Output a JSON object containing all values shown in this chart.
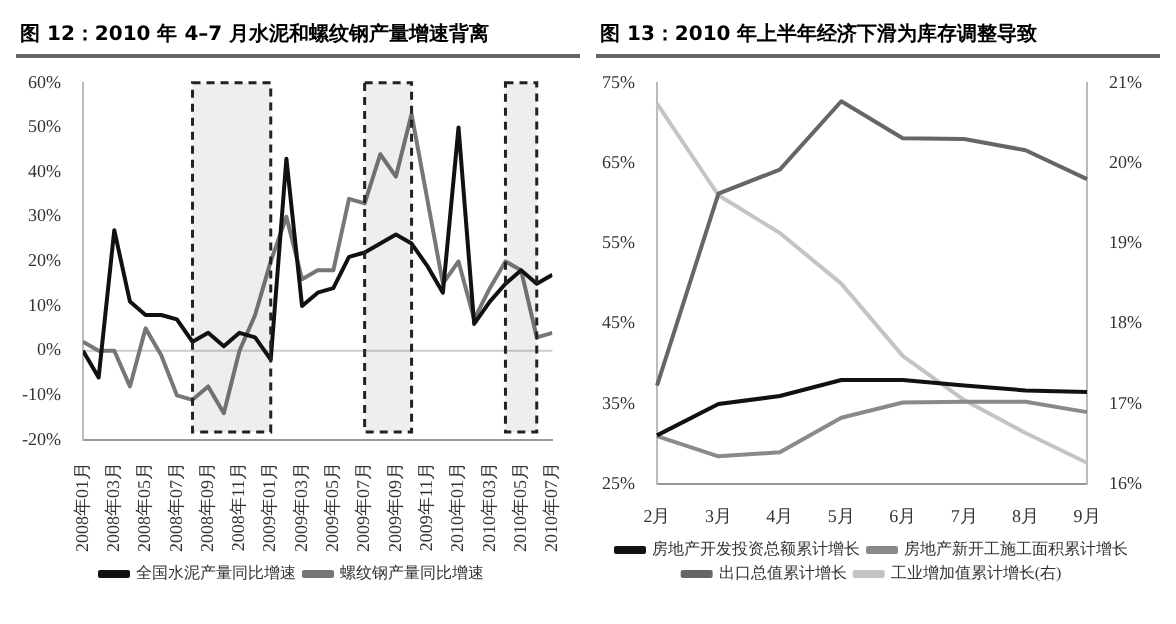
{
  "chart_data": [
    {
      "type": "line",
      "title": "图 12：2010 年 4–7 月水泥和螺纹钢产量增速背离",
      "marker": "none",
      "legend": "bottom",
      "x": [
        "2008-01",
        "2008-02",
        "2008-03",
        "2008-04",
        "2008-05",
        "2008-06",
        "2008-07",
        "2008-08",
        "2008-09",
        "2008-10",
        "2008-11",
        "2008-12",
        "2009-01",
        "2009-02",
        "2009-03",
        "2009-04",
        "2009-05",
        "2009-06",
        "2009-07",
        "2009-08",
        "2009-09",
        "2009-10",
        "2009-11",
        "2009-12",
        "2010-01",
        "2010-02",
        "2010-03",
        "2010-04",
        "2010-05",
        "2010-06",
        "2010-07"
      ],
      "series": [
        {
          "name": "全国水泥产量同比增速",
          "color": "#111111",
          "values": [
            0,
            -6,
            27,
            11,
            8,
            8,
            7,
            2,
            4,
            1,
            4,
            3,
            -2,
            43,
            10,
            13,
            14,
            21,
            22,
            24,
            26,
            24,
            19,
            13,
            50,
            6,
            11,
            15,
            18,
            15,
            17
          ]
        },
        {
          "name": "螺纹钢产量同比增速",
          "color": "#777777",
          "values": [
            2,
            0,
            0,
            -8,
            5,
            -1,
            -10,
            -11,
            -8,
            -14,
            0,
            8,
            20,
            30,
            16,
            18,
            18,
            34,
            33,
            44,
            39,
            53,
            34,
            15,
            20,
            7,
            14,
            20,
            18,
            3,
            4
          ]
        }
      ],
      "xlim": [
        "2008-01",
        "2010-07"
      ],
      "xticks": [
        {
          "value": "2008-01",
          "label": "2008年01月"
        },
        {
          "value": "2008-03",
          "label": "2008年03月"
        },
        {
          "value": "2008-05",
          "label": "2008年05月"
        },
        {
          "value": "2008-07",
          "label": "2008年07月"
        },
        {
          "value": "2008-09",
          "label": "2008年09月"
        },
        {
          "value": "2008-11",
          "label": "2008年11月"
        },
        {
          "value": "2009-01",
          "label": "2009年01月"
        },
        {
          "value": "2009-03",
          "label": "2009年03月"
        },
        {
          "value": "2009-05",
          "label": "2009年05月"
        },
        {
          "value": "2009-07",
          "label": "2009年07月"
        },
        {
          "value": "2009-09",
          "label": "2009年09月"
        },
        {
          "value": "2009-11",
          "label": "2009年11月"
        },
        {
          "value": "2010-01",
          "label": "2010年01月"
        },
        {
          "value": "2010-03",
          "label": "2010年03月"
        },
        {
          "value": "2010-05",
          "label": "2010年05月"
        },
        {
          "value": "2010-07",
          "label": "2010年07月"
        }
      ],
      "ylim": [
        -20,
        60
      ],
      "yticks": [
        {
          "value": -20,
          "label": "-20%"
        },
        {
          "value": -10,
          "label": "-10%"
        },
        {
          "value": 0,
          "label": "0%"
        },
        {
          "value": 10,
          "label": "10%"
        },
        {
          "value": 20,
          "label": "20%"
        },
        {
          "value": 30,
          "label": "30%"
        },
        {
          "value": 40,
          "label": "40%"
        },
        {
          "value": 50,
          "label": "50%"
        },
        {
          "value": 60,
          "label": "60%"
        }
      ],
      "ref_lines": [
        {
          "axis": "y",
          "value": 0,
          "color": "#cccccc"
        }
      ],
      "bands": [
        {
          "axis": "x",
          "from": "2008-08",
          "to": "2009-01",
          "color": "#222222"
        },
        {
          "axis": "x",
          "from": "2009-07",
          "to": "2009-10",
          "color": "#222222"
        },
        {
          "axis": "x",
          "from": "2010-04",
          "to": "2010-06",
          "color": "#222222"
        }
      ]
    },
    {
      "type": "line",
      "title": "图 13：2010 年上半年经济下滑为库存调整导致",
      "marker": "none",
      "legend": "bottom",
      "categories": [
        "2月",
        "3月",
        "4月",
        "5月",
        "6月",
        "7月",
        "8月",
        "9月"
      ],
      "series": [
        {
          "name": "房地产开发投资总额累计增长",
          "color": "#111111",
          "values": [
            31.1,
            35,
            36,
            38,
            38,
            37.3,
            36.7,
            36.5
          ]
        },
        {
          "name": "房地产新开工施工面积累计增长",
          "color": "#8a8a8a",
          "values": [
            31,
            28.5,
            29,
            33.3,
            35.2,
            35.3,
            35.3,
            34
          ]
        },
        {
          "name": "出口总值累计增长",
          "color": "#666666",
          "values": [
            37.3,
            61.2,
            64.2,
            72.7,
            68.1,
            68,
            66.6,
            63
          ]
        },
        {
          "name": "工业增加值累计增长(右)",
          "color": "#c4c4c4",
          "axis": "y2",
          "values": [
            20.74,
            19.6,
            19.13,
            18.5,
            17.6,
            17.05,
            16.64,
            16.27
          ]
        }
      ],
      "ylim": [
        25,
        75
      ],
      "yticks": [
        {
          "value": 25,
          "label": "25%"
        },
        {
          "value": 35,
          "label": "35%"
        },
        {
          "value": 45,
          "label": "45%"
        },
        {
          "value": 55,
          "label": "55%"
        },
        {
          "value": 65,
          "label": "65%"
        },
        {
          "value": 75,
          "label": "75%"
        }
      ],
      "y2lim": [
        16,
        21
      ],
      "y2ticks": [
        {
          "value": 16,
          "label": "16%"
        },
        {
          "value": 17,
          "label": "17%"
        },
        {
          "value": 18,
          "label": "18%"
        },
        {
          "value": 19,
          "label": "19%"
        },
        {
          "value": 20,
          "label": "20%"
        },
        {
          "value": 21,
          "label": "21%"
        }
      ]
    }
  ]
}
